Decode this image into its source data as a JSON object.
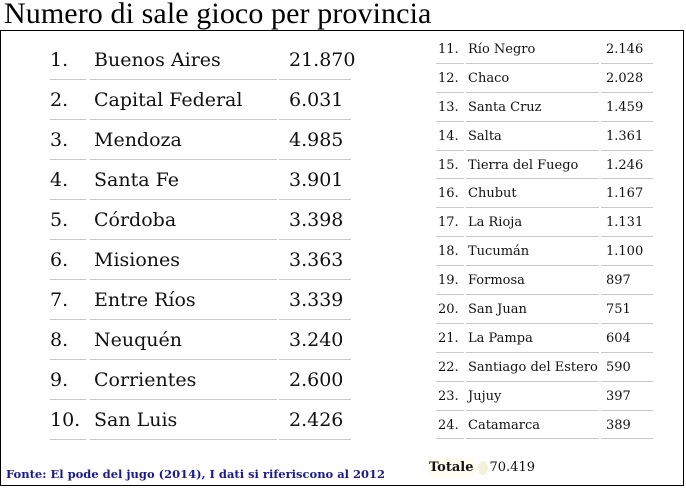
{
  "title": "Numero di sale gioco per provincia",
  "left_rows": [
    {
      "rank": "1.",
      "name": "Buenos Aires",
      "value": "21.870"
    },
    {
      "rank": "2.",
      "name": "Capital Federal",
      "value": "6.031"
    },
    {
      "rank": "3.",
      "name": "Mendoza",
      "value": "4.985"
    },
    {
      "rank": "4.",
      "name": "Santa Fe",
      "value": "3.901"
    },
    {
      "rank": "5.",
      "name": "Córdoba",
      "value": "3.398"
    },
    {
      "rank": "6.",
      "name": "Misiones",
      "value": "3.363"
    },
    {
      "rank": "7.",
      "name": "Entre Ríos",
      "value": "3.339"
    },
    {
      "rank": "8.",
      "name": "Neuquén",
      "value": "3.240"
    },
    {
      "rank": "9.",
      "name": "Corrientes",
      "value": "2.600"
    },
    {
      "rank": "10.",
      "name": "San Luis",
      "value": "2.426"
    }
  ],
  "right_rows": [
    {
      "rank": "11.",
      "name": "Río Negro",
      "value": "2.146"
    },
    {
      "rank": "12.",
      "name": "Chaco",
      "value": "2.028"
    },
    {
      "rank": "13.",
      "name": "Santa Cruz",
      "value": "1.459"
    },
    {
      "rank": "14.",
      "name": "Salta",
      "value": "1.361"
    },
    {
      "rank": "15.",
      "name": "Tierra del Fuego",
      "value": "1.246"
    },
    {
      "rank": "16.",
      "name": "Chubut",
      "value": "1.167"
    },
    {
      "rank": "17.",
      "name": "La Rioja",
      "value": "1.131"
    },
    {
      "rank": "18.",
      "name": "Tucumán",
      "value": "1.100"
    },
    {
      "rank": "19.",
      "name": "Formosa",
      "value": "897"
    },
    {
      "rank": "20.",
      "name": "San Juan",
      "value": "751"
    },
    {
      "rank": "21.",
      "name": "La Pampa",
      "value": "604"
    },
    {
      "rank": "22.",
      "name": "Santiago del Estero",
      "value": "590"
    },
    {
      "rank": "23.",
      "name": "Jujuy",
      "value": "397"
    },
    {
      "rank": "24.",
      "name": "Catamarca",
      "value": "389"
    }
  ],
  "source": "Fonte: El pode del jugo (2014), I dati si riferiscono al 2012",
  "total": {
    "label": "Totale",
    "value": "70.419"
  }
}
